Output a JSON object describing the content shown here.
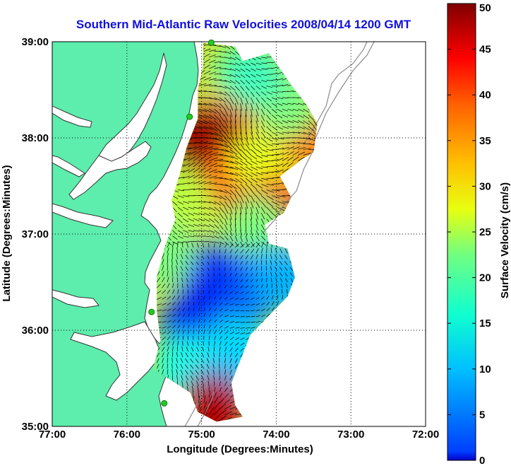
{
  "chart_data": {
    "type": "heatmap",
    "title": "Southern Mid-Atlantic Raw Velocities 2008/04/14 1200 GMT",
    "xlabel": "Longitude (Degrees:Minutes)",
    "ylabel": "Latitude (Degrees:Minutes)",
    "xlim": [
      -77,
      -72
    ],
    "ylim": [
      35,
      39
    ],
    "x_ticks": [
      "77:00",
      "76:00",
      "75:00",
      "74:00",
      "73:00",
      "72:00"
    ],
    "y_ticks": [
      "35:00",
      "36:00",
      "37:00",
      "38:00",
      "39:00"
    ],
    "grid": true,
    "colorbar": {
      "label": "Surface Velocity (cm/s)",
      "range": [
        0,
        50
      ],
      "ticks": [
        "0",
        "5",
        "10",
        "15",
        "20",
        "25",
        "30",
        "35",
        "40",
        "45",
        "50"
      ],
      "colormap": "jet"
    },
    "colors": {
      "land": "#5dedad",
      "coastline": "#444444",
      "grid": "#000000",
      "station": "#22cc22",
      "arrows": "#000000"
    },
    "stations": [
      {
        "lon": -74.87,
        "lat": 38.99
      },
      {
        "lon": -75.16,
        "lat": 38.22
      },
      {
        "lon": -75.67,
        "lat": 36.19
      },
      {
        "lon": -75.5,
        "lat": 35.24
      }
    ],
    "velocity_regions": [
      {
        "lon": -74.5,
        "lat": 38.25,
        "speed": 38
      },
      {
        "lon": -74.75,
        "lat": 37.9,
        "speed": 46
      },
      {
        "lon": -74.95,
        "lat": 37.95,
        "speed": 49
      },
      {
        "lon": -74.55,
        "lat": 37.6,
        "speed": 42
      },
      {
        "lon": -74.2,
        "lat": 37.75,
        "speed": 30
      },
      {
        "lon": -73.55,
        "lat": 38.05,
        "speed": 38
      },
      {
        "lon": -73.85,
        "lat": 38.35,
        "speed": 25
      },
      {
        "lon": -74.35,
        "lat": 38.65,
        "speed": 22
      },
      {
        "lon": -74.0,
        "lat": 37.25,
        "speed": 44
      },
      {
        "lon": -74.25,
        "lat": 37.05,
        "speed": 25
      },
      {
        "lon": -75.3,
        "lat": 37.35,
        "speed": 28
      },
      {
        "lon": -74.85,
        "lat": 36.55,
        "speed": 6
      },
      {
        "lon": -74.35,
        "lat": 36.45,
        "speed": 10
      },
      {
        "lon": -75.1,
        "lat": 36.05,
        "speed": 8
      },
      {
        "lon": -74.55,
        "lat": 35.8,
        "speed": 17
      },
      {
        "lon": -75.2,
        "lat": 35.6,
        "speed": 20
      },
      {
        "lon": -74.8,
        "lat": 35.35,
        "speed": 15
      },
      {
        "lon": -74.85,
        "lat": 35.18,
        "speed": 47
      },
      {
        "lon": -73.9,
        "lat": 36.55,
        "speed": 15
      },
      {
        "lon": -75.55,
        "lat": 36.8,
        "speed": 25
      }
    ]
  }
}
